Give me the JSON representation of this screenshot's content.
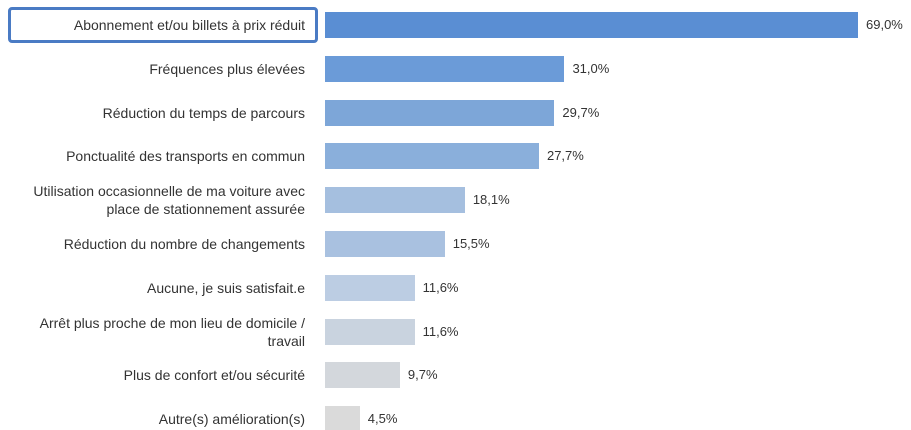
{
  "chart_data": {
    "type": "bar",
    "orientation": "horizontal",
    "categories": [
      "Abonnement et/ou billets à prix réduit",
      "Fréquences plus élevées",
      "Réduction du temps de parcours",
      "Ponctualité des transports en commun",
      "Utilisation occasionnelle de ma voiture avec place de stationnement assurée",
      "Réduction du nombre de changements",
      "Aucune, je suis satisfait.e",
      "Arrêt plus proche de mon lieu de domicile / travail",
      "Plus de confort et/ou sécurité",
      "Autre(s) amélioration(s)"
    ],
    "values": [
      69.0,
      31.0,
      29.7,
      27.7,
      18.1,
      15.5,
      11.6,
      11.6,
      9.7,
      4.5
    ],
    "value_labels": [
      "69,0%",
      "31,0%",
      "29,7%",
      "27,7%",
      "18,1%",
      "15,5%",
      "11,6%",
      "11,6%",
      "9,7%",
      "4,5%"
    ],
    "colors": [
      "#5a8ed3",
      "#6b9bd8",
      "#7da6d8",
      "#8aafdb",
      "#a5bfdf",
      "#a9c1e0",
      "#bccde3",
      "#c9d3df",
      "#d3d7dc",
      "#dadada"
    ],
    "highlight_index": 0
  }
}
